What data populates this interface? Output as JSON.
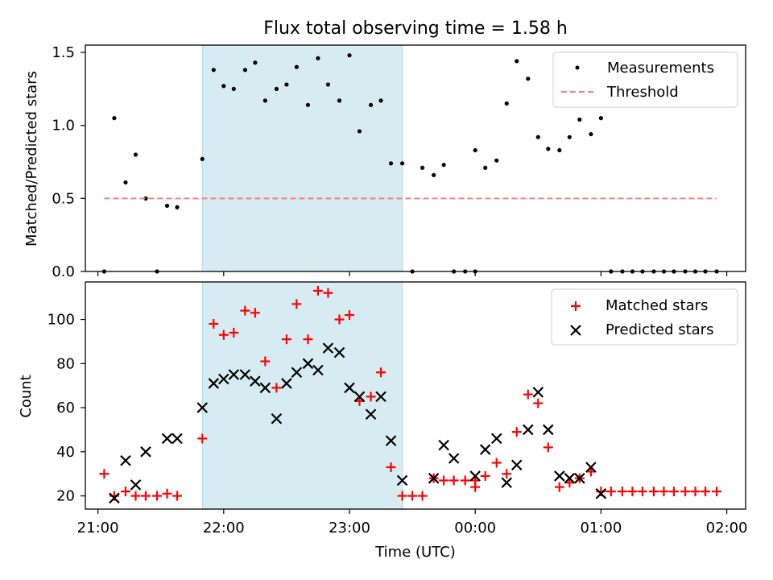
{
  "title": "Flux total observing time = 1.58 h",
  "x_tick_labels": [
    "21:00",
    "22:00",
    "23:00",
    "00:00",
    "01:00",
    "02:00"
  ],
  "colors": {
    "measurement": "#000000",
    "threshold": "#f08080",
    "matched": "#ff0000",
    "predicted": "#000000",
    "highlight": "#add8e6"
  },
  "chart_data": [
    {
      "type": "scatter",
      "ylabel": "Matched/Predicted stars",
      "xlabel": "",
      "x_unit": "hours since 21:00 UTC",
      "xlim": [
        -0.1,
        5.15
      ],
      "ylim": [
        0,
        1.55
      ],
      "y_ticks": [
        0.0,
        0.5,
        1.0,
        1.5
      ],
      "y_tick_labels": [
        "0.0",
        "0.5",
        "1.0",
        "1.5"
      ],
      "legend": "top-right",
      "highlight_span": [
        0.83,
        2.42
      ],
      "series": [
        {
          "name": "Measurements",
          "marker": "dot",
          "points": [
            [
              0.05,
              0.0
            ],
            [
              0.13,
              1.05
            ],
            [
              0.22,
              0.61
            ],
            [
              0.3,
              0.8
            ],
            [
              0.38,
              0.5
            ],
            [
              0.47,
              0.0
            ],
            [
              0.55,
              0.45
            ],
            [
              0.63,
              0.44
            ],
            [
              0.83,
              0.77
            ],
            [
              0.92,
              1.38
            ],
            [
              1.0,
              1.27
            ],
            [
              1.08,
              1.25
            ],
            [
              1.17,
              1.38
            ],
            [
              1.25,
              1.43
            ],
            [
              1.33,
              1.17
            ],
            [
              1.42,
              1.25
            ],
            [
              1.5,
              1.28
            ],
            [
              1.58,
              1.4
            ],
            [
              1.67,
              1.14
            ],
            [
              1.75,
              1.46
            ],
            [
              1.83,
              1.28
            ],
            [
              1.92,
              1.17
            ],
            [
              2.0,
              1.48
            ],
            [
              2.08,
              0.96
            ],
            [
              2.17,
              1.14
            ],
            [
              2.25,
              1.17
            ],
            [
              2.33,
              0.74
            ],
            [
              2.42,
              0.74
            ],
            [
              2.5,
              0.0
            ],
            [
              2.58,
              0.71
            ],
            [
              2.67,
              0.66
            ],
            [
              2.75,
              0.73
            ],
            [
              2.83,
              0.0
            ],
            [
              2.92,
              0.0
            ],
            [
              3.0,
              0.0
            ],
            [
              3.0,
              0.83
            ],
            [
              3.08,
              0.71
            ],
            [
              3.17,
              0.76
            ],
            [
              3.25,
              1.15
            ],
            [
              3.33,
              1.44
            ],
            [
              3.42,
              1.32
            ],
            [
              3.5,
              0.92
            ],
            [
              3.58,
              0.84
            ],
            [
              3.67,
              0.83
            ],
            [
              3.75,
              0.92
            ],
            [
              3.83,
              1.04
            ],
            [
              3.92,
              0.94
            ],
            [
              4.0,
              1.05
            ],
            [
              4.08,
              0.0
            ],
            [
              4.17,
              0.0
            ],
            [
              4.25,
              0.0
            ],
            [
              4.33,
              0.0
            ],
            [
              4.42,
              0.0
            ],
            [
              4.5,
              0.0
            ],
            [
              4.58,
              0.0
            ],
            [
              4.67,
              0.0
            ],
            [
              4.75,
              0.0
            ],
            [
              4.83,
              0.0
            ],
            [
              4.92,
              0.0
            ]
          ]
        },
        {
          "name": "Threshold",
          "style": "dashed",
          "points": [
            [
              0.05,
              0.5
            ],
            [
              4.92,
              0.5
            ]
          ]
        }
      ]
    },
    {
      "type": "scatter",
      "ylabel": "Count",
      "xlabel": "Time (UTC)",
      "x_unit": "hours since 21:00 UTC",
      "xlim": [
        -0.1,
        5.15
      ],
      "ylim": [
        14,
        117
      ],
      "y_ticks": [
        20,
        40,
        60,
        80,
        100
      ],
      "y_tick_labels": [
        "20",
        "40",
        "60",
        "80",
        "100"
      ],
      "legend": "top-right",
      "highlight_span": [
        0.83,
        2.42
      ],
      "series": [
        {
          "name": "Matched stars",
          "marker": "plus",
          "points": [
            [
              0.05,
              30
            ],
            [
              0.13,
              20
            ],
            [
              0.22,
              22
            ],
            [
              0.3,
              20
            ],
            [
              0.38,
              20
            ],
            [
              0.47,
              20
            ],
            [
              0.55,
              21
            ],
            [
              0.63,
              20
            ],
            [
              0.83,
              46
            ],
            [
              0.92,
              98
            ],
            [
              1.0,
              93
            ],
            [
              1.08,
              94
            ],
            [
              1.17,
              104
            ],
            [
              1.25,
              103
            ],
            [
              1.33,
              81
            ],
            [
              1.42,
              69
            ],
            [
              1.5,
              91
            ],
            [
              1.58,
              107
            ],
            [
              1.67,
              91
            ],
            [
              1.75,
              113
            ],
            [
              1.83,
              112
            ],
            [
              1.92,
              100
            ],
            [
              2.0,
              102
            ],
            [
              2.08,
              63
            ],
            [
              2.17,
              65
            ],
            [
              2.25,
              76
            ],
            [
              2.33,
              33
            ],
            [
              2.42,
              20
            ],
            [
              2.5,
              20
            ],
            [
              2.58,
              20
            ],
            [
              2.67,
              28
            ],
            [
              2.75,
              27
            ],
            [
              2.83,
              27
            ],
            [
              2.92,
              27
            ],
            [
              3.0,
              27
            ],
            [
              3.0,
              24
            ],
            [
              3.08,
              29
            ],
            [
              3.17,
              35
            ],
            [
              3.25,
              30
            ],
            [
              3.33,
              49
            ],
            [
              3.42,
              66
            ],
            [
              3.5,
              62
            ],
            [
              3.58,
              42
            ],
            [
              3.67,
              24
            ],
            [
              3.75,
              26
            ],
            [
              3.83,
              28
            ],
            [
              3.92,
              31
            ],
            [
              4.0,
              22
            ],
            [
              4.08,
              22
            ],
            [
              4.17,
              22
            ],
            [
              4.25,
              22
            ],
            [
              4.33,
              22
            ],
            [
              4.42,
              22
            ],
            [
              4.5,
              22
            ],
            [
              4.58,
              22
            ],
            [
              4.67,
              22
            ],
            [
              4.75,
              22
            ],
            [
              4.83,
              22
            ],
            [
              4.92,
              22
            ]
          ]
        },
        {
          "name": "Predicted stars",
          "marker": "x",
          "points": [
            [
              0.13,
              19
            ],
            [
              0.22,
              36
            ],
            [
              0.3,
              25
            ],
            [
              0.38,
              40
            ],
            [
              0.55,
              46
            ],
            [
              0.63,
              46
            ],
            [
              0.83,
              60
            ],
            [
              0.92,
              71
            ],
            [
              1.0,
              73
            ],
            [
              1.08,
              75
            ],
            [
              1.17,
              75
            ],
            [
              1.25,
              72
            ],
            [
              1.33,
              69
            ],
            [
              1.42,
              55
            ],
            [
              1.5,
              71
            ],
            [
              1.58,
              76
            ],
            [
              1.67,
              80
            ],
            [
              1.75,
              77
            ],
            [
              1.83,
              87
            ],
            [
              1.92,
              85
            ],
            [
              2.0,
              69
            ],
            [
              2.08,
              65
            ],
            [
              2.17,
              57
            ],
            [
              2.25,
              65
            ],
            [
              2.33,
              45
            ],
            [
              2.42,
              27
            ],
            [
              2.67,
              28
            ],
            [
              2.75,
              43
            ],
            [
              2.83,
              37
            ],
            [
              3.0,
              29
            ],
            [
              3.08,
              41
            ],
            [
              3.17,
              46
            ],
            [
              3.25,
              26
            ],
            [
              3.33,
              34
            ],
            [
              3.42,
              50
            ],
            [
              3.5,
              67
            ],
            [
              3.58,
              50
            ],
            [
              3.67,
              29
            ],
            [
              3.75,
              28
            ],
            [
              3.83,
              28
            ],
            [
              3.92,
              33
            ],
            [
              4.0,
              21
            ]
          ]
        }
      ]
    }
  ]
}
